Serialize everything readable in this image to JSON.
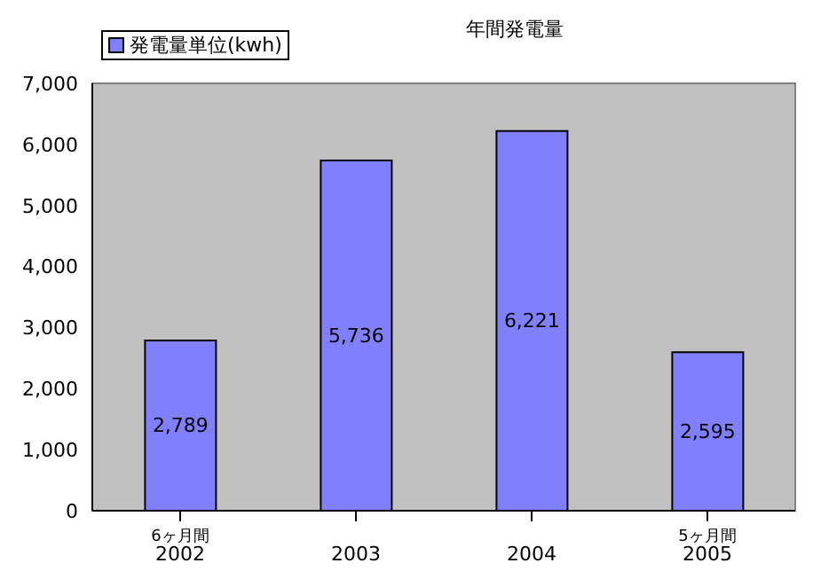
{
  "chart_data": {
    "type": "bar",
    "title": "年間発電量",
    "categories": [
      "6ヶ月間\n2002",
      "2003",
      "2004",
      "5ヶ月間\n2005"
    ],
    "series": [
      {
        "name": "発電量単位(kwh)",
        "color": "#8080ff",
        "values": [
          2789,
          5736,
          6221,
          2595
        ],
        "value_labels": [
          "2,789",
          "5,736",
          "6,221",
          "2,595"
        ]
      }
    ],
    "ylim": [
      0,
      7000
    ],
    "yticks": [
      0,
      {
        "value": 1000,
        "label": "1,000"
      },
      {
        "value": 2000,
        "label": "2,000"
      },
      {
        "value": 3000,
        "label": "3,000"
      },
      {
        "value": 4000,
        "label": "4,000"
      },
      {
        "value": 5000,
        "label": "5,000"
      },
      {
        "value": 6000,
        "label": "6,000"
      },
      {
        "value": 7000,
        "label": "7,000"
      }
    ],
    "legend": "top left"
  }
}
